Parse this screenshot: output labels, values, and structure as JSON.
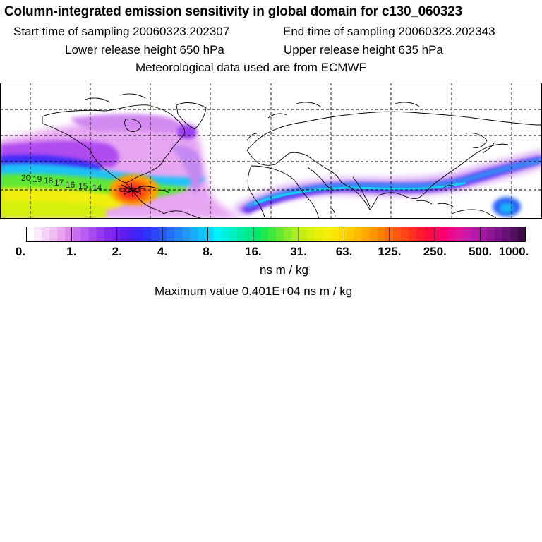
{
  "header": {
    "title": "Column-integrated emission sensitivity in global domain for c130_060323",
    "start_time": "Start time of sampling 20060323.202307",
    "end_time": "End time of sampling 20060323.202343",
    "lower_height": "Lower release height  650 hPa",
    "upper_height": "Upper release height  635 hPa",
    "met_data": "Meteorological data used are from ECMWF"
  },
  "map": {
    "trajectory_labels": [
      "20",
      "19",
      "18",
      "17",
      "16",
      "15",
      "14"
    ]
  },
  "colorbar": {
    "tick_labels": [
      "0.",
      "1.",
      "2.",
      "4.",
      "8.",
      "16.",
      "31.",
      "63.",
      "125.",
      "250.",
      "500.",
      "1000."
    ],
    "colors": [
      "#ffffff",
      "#fbe9fb",
      "#f6d3f6",
      "#f0bdf0",
      "#e9a3ef",
      "#dc86ee",
      "#c76ff0",
      "#b85cf2",
      "#a84af3",
      "#9438f4",
      "#8528f2",
      "#7720f0",
      "#5e1ef2",
      "#4b20f4",
      "#3a26f6",
      "#2e34f8",
      "#2d46f8",
      "#2a58f8",
      "#226ef8",
      "#1f84f8",
      "#1e97f8",
      "#19acf8",
      "#12c1f8",
      "#0dd3f8",
      "#00f2f8",
      "#00f0e0",
      "#00eec4",
      "#00eca6",
      "#00ea88",
      "#00e86c",
      "#1ee84e",
      "#3ee83c",
      "#64e830",
      "#88ea28",
      "#a8ec1e",
      "#c4ee16",
      "#d8f00e",
      "#e8f00a",
      "#f4ee08",
      "#fae606",
      "#fcda04",
      "#fdca02",
      "#ffba00",
      "#ffa800",
      "#ff9400",
      "#ff8000",
      "#ff6c08",
      "#ff5810",
      "#ff4416",
      "#ff3020",
      "#ff1c2c",
      "#ff0e40",
      "#ff0458",
      "#fb0070",
      "#ed0a8a",
      "#dd149c",
      "#cb18a8",
      "#b818aa",
      "#a417a2",
      "#901696",
      "#7a1488",
      "#661274",
      "#520f5e",
      "#3e0b48"
    ],
    "units": "ns m / kg",
    "max_value": "Maximum value  0.401E+04 ns m / kg"
  }
}
